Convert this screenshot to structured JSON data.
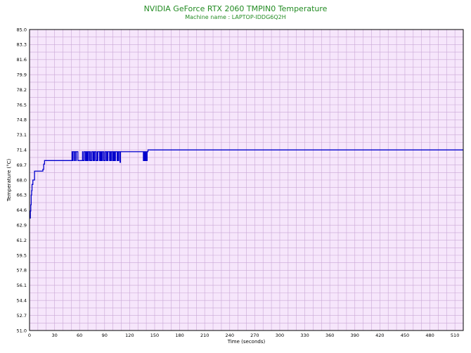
{
  "chart_data": {
    "type": "line",
    "title": "NVIDIA GeForce RTX 2060 TMPIN0 Temperature",
    "subtitle": "Machine name : LAPTOP-IDDG6Q2H",
    "xlabel": "Time (seconds)",
    "ylabel": "Temperature (°C)",
    "xlim": [
      0,
      520
    ],
    "ylim": [
      51.0,
      85.0
    ],
    "x_ticks": [
      "0",
      "30",
      "60",
      "90",
      "120",
      "150",
      "180",
      "210",
      "240",
      "270",
      "300",
      "330",
      "360",
      "390",
      "420",
      "450",
      "480",
      "510"
    ],
    "y_ticks": [
      "85.0",
      "83.3",
      "81.6",
      "79.9",
      "78.2",
      "76.5",
      "74.8",
      "73.1",
      "71.4",
      "69.7",
      "68.0",
      "66.3",
      "64.6",
      "62.9",
      "61.2",
      "59.5",
      "57.8",
      "56.1",
      "54.4",
      "52.7",
      "51.0"
    ],
    "grid": true,
    "background": "#f6e6fb",
    "grid_color": "#c9a7d6",
    "line_color": "#0000cc",
    "series": [
      {
        "name": "",
        "x": [
          0,
          0.5,
          1,
          1.5,
          2,
          2.5,
          3,
          4,
          5,
          6,
          7,
          8,
          9,
          10,
          11,
          12,
          13,
          14,
          15,
          16,
          17,
          18,
          19,
          20,
          25,
          30,
          40,
          50,
          51,
          51.5,
          52,
          53,
          53.5,
          54,
          55,
          55.5,
          56,
          57,
          58,
          60,
          63,
          63.5,
          64,
          65,
          65.5,
          66,
          67,
          67.5,
          68,
          69,
          70,
          70.5,
          71,
          72,
          72.5,
          73,
          74,
          74.5,
          75,
          76,
          76.5,
          77,
          78,
          79,
          79.5,
          80,
          81,
          81.5,
          82,
          83,
          84,
          84.5,
          85,
          86,
          87,
          87.5,
          88,
          89,
          90,
          90.5,
          91,
          92,
          93,
          93.5,
          94,
          95,
          96,
          96.5,
          97,
          98,
          99,
          99.5,
          100,
          101,
          102,
          102.5,
          103,
          104,
          105,
          105.5,
          106,
          107,
          108,
          108.5,
          109,
          110,
          120,
          130,
          136,
          136.5,
          137,
          137.5,
          138,
          138.5,
          139,
          139.5,
          140,
          140.5,
          141,
          142,
          150,
          200,
          300,
          400,
          500,
          520
        ],
        "y": [
          64.0,
          63.7,
          64.5,
          65.2,
          66.3,
          66.8,
          67.5,
          68.0,
          68.0,
          69.0,
          69.0,
          69.0,
          69.0,
          69.0,
          69.0,
          69.0,
          69.0,
          69.0,
          69.0,
          69.2,
          69.8,
          70.2,
          70.2,
          70.2,
          70.2,
          70.2,
          70.2,
          70.2,
          71.2,
          70.2,
          71.2,
          71.2,
          70.2,
          71.2,
          71.2,
          70.2,
          71.2,
          71.2,
          70.2,
          70.2,
          70.2,
          71.2,
          70.2,
          70.2,
          71.2,
          71.2,
          70.2,
          71.2,
          70.2,
          71.2,
          70.2,
          71.2,
          71.2,
          70.2,
          71.2,
          70.2,
          70.2,
          71.2,
          71.2,
          70.2,
          71.2,
          70.2,
          71.2,
          71.2,
          70.2,
          70.2,
          71.2,
          70.2,
          71.2,
          71.2,
          70.2,
          71.2,
          70.2,
          71.2,
          70.2,
          71.2,
          71.2,
          70.2,
          70.2,
          71.2,
          71.2,
          70.2,
          71.2,
          70.2,
          71.2,
          71.2,
          70.2,
          71.2,
          70.2,
          71.2,
          71.2,
          70.2,
          71.2,
          70.2,
          71.2,
          70.2,
          71.2,
          71.2,
          70.2,
          71.2,
          70.2,
          71.2,
          71.2,
          70.0,
          71.2,
          71.2,
          71.2,
          71.2,
          71.2,
          70.2,
          71.2,
          70.2,
          71.2,
          70.2,
          71.2,
          70.2,
          71.2,
          70.2,
          71.2,
          71.4,
          71.4,
          71.4,
          71.4,
          71.4,
          71.4,
          71.4
        ]
      }
    ]
  }
}
